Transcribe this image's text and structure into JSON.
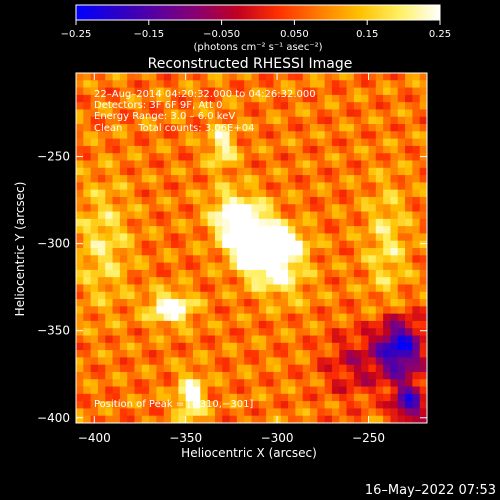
{
  "chart_data": {
    "type": "heatmap",
    "title": "Reconstructed RHESSI Image",
    "xlabel": "Heliocentric X (arcsec)",
    "ylabel": "Heliocentric Y (arcsec)",
    "xlim": [
      -410,
      -218
    ],
    "ylim": [
      -403,
      -202
    ],
    "x_ticks": [
      {
        "value": -400,
        "label": "−400"
      },
      {
        "value": -350,
        "label": "−350"
      },
      {
        "value": -300,
        "label": "−300"
      },
      {
        "value": -250,
        "label": "−250"
      }
    ],
    "y_ticks": [
      {
        "value": -250,
        "label": "−250"
      },
      {
        "value": -300,
        "label": "−300"
      },
      {
        "value": -350,
        "label": "−350"
      },
      {
        "value": -400,
        "label": "−400"
      }
    ],
    "colorbar": {
      "range": [
        -0.25,
        0.25
      ],
      "ticks": [
        {
          "value": -0.25,
          "label": "−0.25"
        },
        {
          "value": -0.15,
          "label": "−0.15"
        },
        {
          "value": -0.05,
          "label": "−0.050"
        },
        {
          "value": 0.05,
          "label": "0.050"
        },
        {
          "value": 0.15,
          "label": "0.15"
        },
        {
          "value": 0.25,
          "label": "0.25"
        }
      ],
      "unit_label": "(photons cm⁻² s⁻¹ asec⁻²)",
      "colors": [
        "#0000ff",
        "#2a00c8",
        "#5a00a0",
        "#8a0070",
        "#c00020",
        "#ff3000",
        "#ff7a00",
        "#ffc000",
        "#fff060",
        "#ffffff"
      ]
    },
    "annotations": [
      "22–Aug–2014 04:20:32.000 to 04:26:32.000",
      "Detectors: 3F 6F 9F, Att 0",
      "Energy Range: 3.0 – 6.0 keV",
      "Clean     Total counts: 3.06E+04"
    ],
    "peak_label": "Position of Peak = [−310,−301]",
    "peak": {
      "x": -310,
      "y": -301
    },
    "blobs": [
      {
        "x": -310,
        "y": -301,
        "sx": 10,
        "sy": 18,
        "rot": 35,
        "amp": 0.34
      },
      {
        "x": -323,
        "y": -284,
        "sx": 8,
        "sy": 8,
        "rot": 0,
        "amp": 0.1
      },
      {
        "x": -358,
        "y": -337,
        "sx": 8,
        "sy": 6,
        "rot": 0,
        "amp": 0.24
      },
      {
        "x": -347,
        "y": -388,
        "sx": 5,
        "sy": 9,
        "rot": 0,
        "amp": 0.2
      },
      {
        "x": -330,
        "y": -244,
        "sx": 5,
        "sy": 9,
        "rot": 0,
        "amp": 0.15
      },
      {
        "x": -292,
        "y": -300,
        "sx": 7,
        "sy": 6,
        "rot": 0,
        "amp": 0.12
      },
      {
        "x": -240,
        "y": -300,
        "sx": 8,
        "sy": 25,
        "rot": 0,
        "amp": 0.1
      },
      {
        "x": -395,
        "y": -300,
        "sx": 10,
        "sy": 25,
        "rot": 0,
        "amp": 0.1
      },
      {
        "x": -233,
        "y": -360,
        "sx": 9,
        "sy": 12,
        "rot": 0,
        "amp": -0.3
      },
      {
        "x": -228,
        "y": -392,
        "sx": 6,
        "sy": 8,
        "rot": 0,
        "amp": -0.25
      },
      {
        "x": -258,
        "y": -370,
        "sx": 12,
        "sy": 14,
        "rot": 0,
        "amp": -0.1
      }
    ],
    "background_level": 0.08
  },
  "footer": {
    "timestamp": "16–May–2022 07:53"
  }
}
